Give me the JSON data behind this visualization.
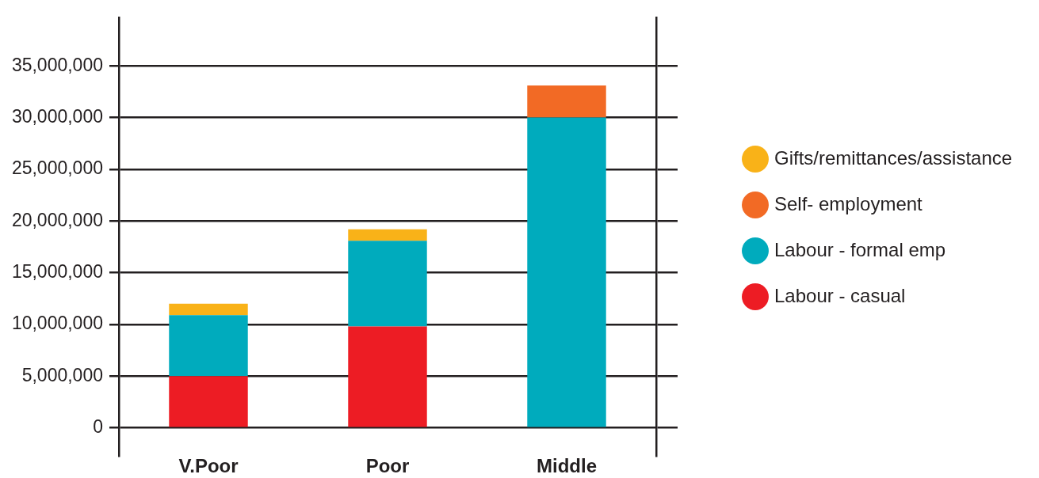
{
  "chart_data": {
    "type": "bar",
    "stacked": true,
    "categories": [
      "V.Poor",
      "Poor",
      "Middle"
    ],
    "series": [
      {
        "name": "Labour - casual",
        "color": "#ed1c24",
        "values": [
          5000000,
          9800000,
          null
        ]
      },
      {
        "name": "Labour - formal emp",
        "color": "#00abbd",
        "values": [
          5900000,
          8300000,
          30000000
        ]
      },
      {
        "name": "Self- employment",
        "color": "#f26a25",
        "values": [
          null,
          null,
          3100000
        ]
      },
      {
        "name": "Gifts/remittances/assistance",
        "color": "#f9b218",
        "values": [
          1100000,
          1100000,
          null
        ]
      }
    ],
    "ylim": [
      -2700000,
      39700000
    ],
    "yticks": [
      0,
      {
        "value": 5000000,
        "label": "5,000,000"
      },
      {
        "value": 10000000,
        "label": "10,000,000"
      },
      {
        "value": 15000000,
        "label": "15,000,000"
      },
      {
        "value": 20000000,
        "label": "20,000,000"
      },
      {
        "value": 25000000,
        "label": "25,000,000"
      },
      {
        "value": 30000000,
        "label": "30,000,000"
      },
      {
        "value": 35000000,
        "label": "35,000,000"
      }
    ],
    "grid": "y",
    "legend": "right"
  }
}
